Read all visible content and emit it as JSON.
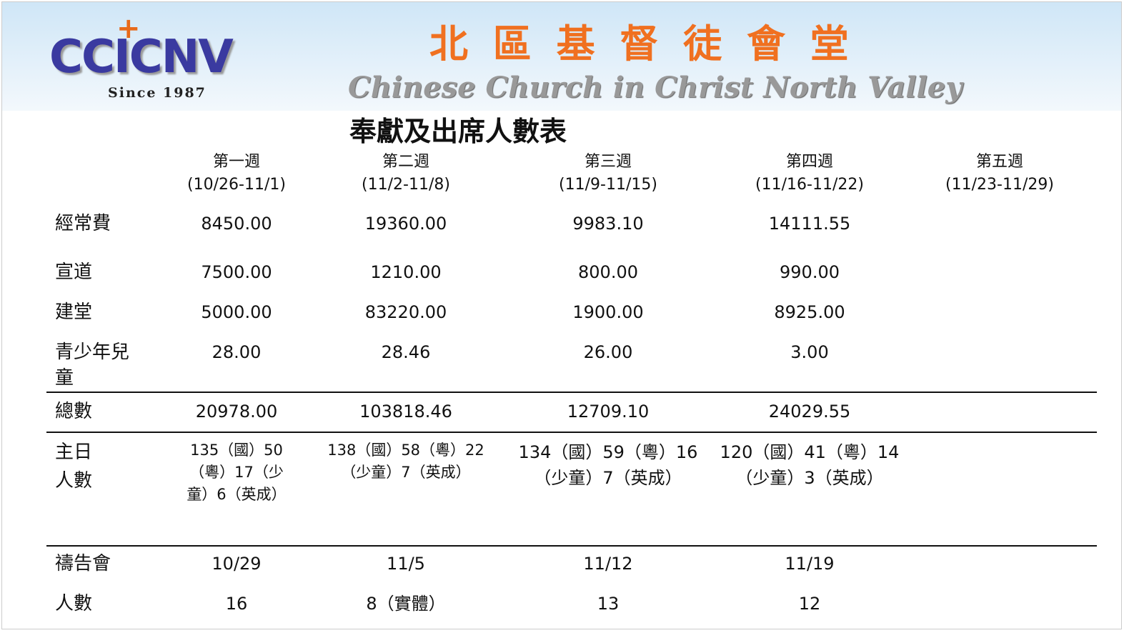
{
  "header": {
    "logo": "CCICNV",
    "since": "Since 1987",
    "chinese_name": "北 區 基 督 徒 會 堂",
    "english_name": "Chinese Church in Christ North Valley"
  },
  "title": "奉獻及出席人數表",
  "table": {
    "columns": [
      {
        "week": "第一週",
        "dates": "(10/26-11/1)"
      },
      {
        "week": "第二週",
        "dates": "(11/2-11/8)"
      },
      {
        "week": "第三週",
        "dates": "(11/9-11/15)"
      },
      {
        "week": "第四週",
        "dates": "(11/16-11/22)"
      },
      {
        "week": "第五週",
        "dates": "(11/23-11/29)"
      }
    ],
    "rows": [
      {
        "label": "經常費",
        "cells": [
          "8450.00",
          "19360.00",
          "9983.10",
          "14111.55"
        ]
      },
      {
        "label": "宣道",
        "cells": [
          "7500.00",
          "1210.00",
          "800.00",
          "990.00"
        ]
      },
      {
        "label": "建堂",
        "cells": [
          "5000.00",
          "83220.00",
          "1900.00",
          "8925.00"
        ]
      },
      {
        "label": "青少年兒童",
        "cells": [
          "28.00",
          "28.46",
          "26.00",
          "3.00"
        ]
      },
      {
        "label": "總數",
        "cells": [
          "20978.00",
          "103818.46",
          "12709.10",
          "24029.55"
        ]
      },
      {
        "label": "主日人數",
        "cells": [
          "135（國）50（粵）17（少童）6（英成）",
          "138（國）58（粵）22（少童）7（英成）",
          "134（國）59（粵）16（少童）7（英成）",
          "120（國）41（粵）14（少童）3（英成）"
        ]
      },
      {
        "label": "禱告會",
        "cells": [
          "10/29",
          "11/5",
          "11/12",
          "11/19"
        ]
      },
      {
        "label": "人數",
        "cells": [
          "16",
          "8（實體）",
          "13",
          "12"
        ]
      }
    ]
  }
}
